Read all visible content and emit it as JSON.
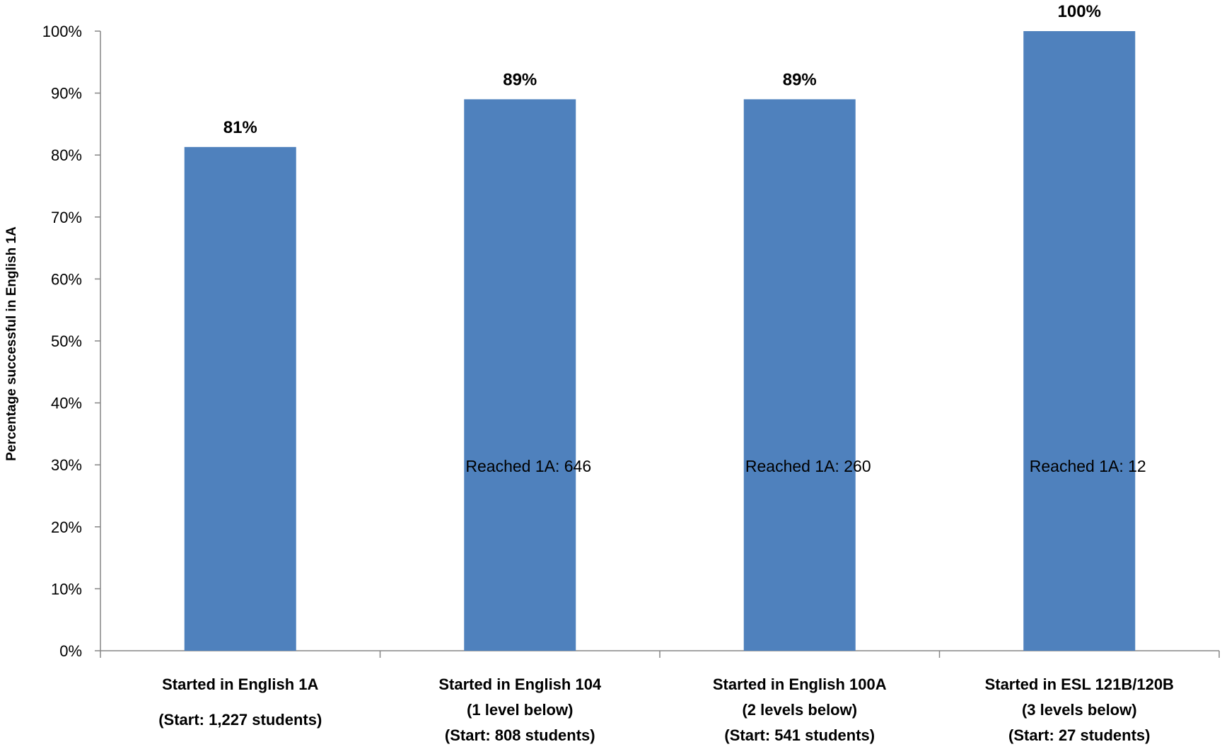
{
  "chart_data": {
    "type": "bar",
    "title": "",
    "xlabel": "",
    "ylabel": "Percentage successful  in English 1A",
    "ylim": [
      0,
      100
    ],
    "y_ticks": [
      "0%",
      "10%",
      "20%",
      "30%",
      "40%",
      "50%",
      "60%",
      "70%",
      "80%",
      "90%",
      "100%"
    ],
    "grid": false,
    "legend": "none",
    "colors": {
      "bar": "#4f81bd",
      "axis": "#868686"
    },
    "categories": [
      {
        "lines": [
          "Started in English 1A",
          "(Start: 1,227 students)"
        ]
      },
      {
        "lines": [
          "Started in English 104",
          "(1 level below)",
          "(Start:  808 students)"
        ]
      },
      {
        "lines": [
          "Started in English 100A",
          "(2 levels below)",
          "(Start:  541 students)"
        ]
      },
      {
        "lines": [
          "Started in ESL 121B/120B",
          "(3 levels below)",
          "(Start:  27 students)"
        ]
      }
    ],
    "values": [
      81.3,
      89,
      89,
      100
    ],
    "data_labels": [
      "81%",
      "89%",
      "89%",
      "100%"
    ],
    "annotations": [
      "",
      "Reached 1A: 646",
      "Reached 1A: 260",
      "Reached 1A: 12"
    ]
  }
}
